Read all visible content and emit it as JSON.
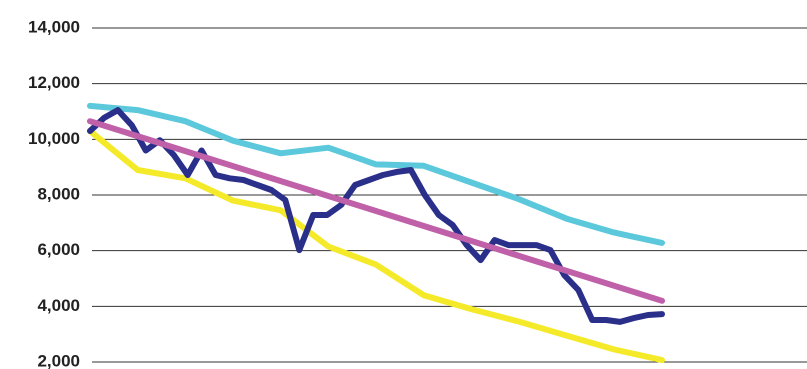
{
  "chart_data": {
    "type": "line",
    "ylim": [
      2000,
      14000
    ],
    "yticks": [
      {
        "value": 2000,
        "label": "2,000"
      },
      {
        "value": 4000,
        "label": "4,000"
      },
      {
        "value": 6000,
        "label": "6,000"
      },
      {
        "value": 8000,
        "label": "8,000"
      },
      {
        "value": 10000,
        "label": "10,000"
      },
      {
        "value": 12000,
        "label": "12,000"
      },
      {
        "value": 14000,
        "label": "14,000"
      }
    ],
    "grid": true,
    "series": [
      {
        "color": "#5bc8dc",
        "values": [
          11200,
          11050,
          10650,
          9950,
          9500,
          9700,
          9100,
          9050,
          8450,
          7850,
          7150,
          6650,
          6280
        ]
      },
      {
        "color": "#f5ea2a",
        "values": [
          10300,
          8900,
          8600,
          7800,
          7450,
          6150,
          5500,
          4400,
          3900,
          3450,
          2950,
          2450,
          2070
        ]
      },
      {
        "color": "#2a2f8a",
        "values": [
          10300,
          10770,
          11050,
          10500,
          9600,
          9970,
          9440,
          8720,
          9600,
          8720,
          8600,
          8540,
          8360,
          8180,
          7820,
          6020,
          7280,
          7280,
          7640,
          8360,
          8540,
          8720,
          8830,
          8900,
          8000,
          7280,
          6920,
          6200,
          5660,
          6380,
          6200,
          6200,
          6200,
          6020,
          5120,
          4590,
          3510,
          3510,
          3440,
          3580,
          3690,
          3720
        ]
      },
      {
        "color": "#c060a8",
        "values": [
          10650,
          4200
        ]
      }
    ]
  }
}
